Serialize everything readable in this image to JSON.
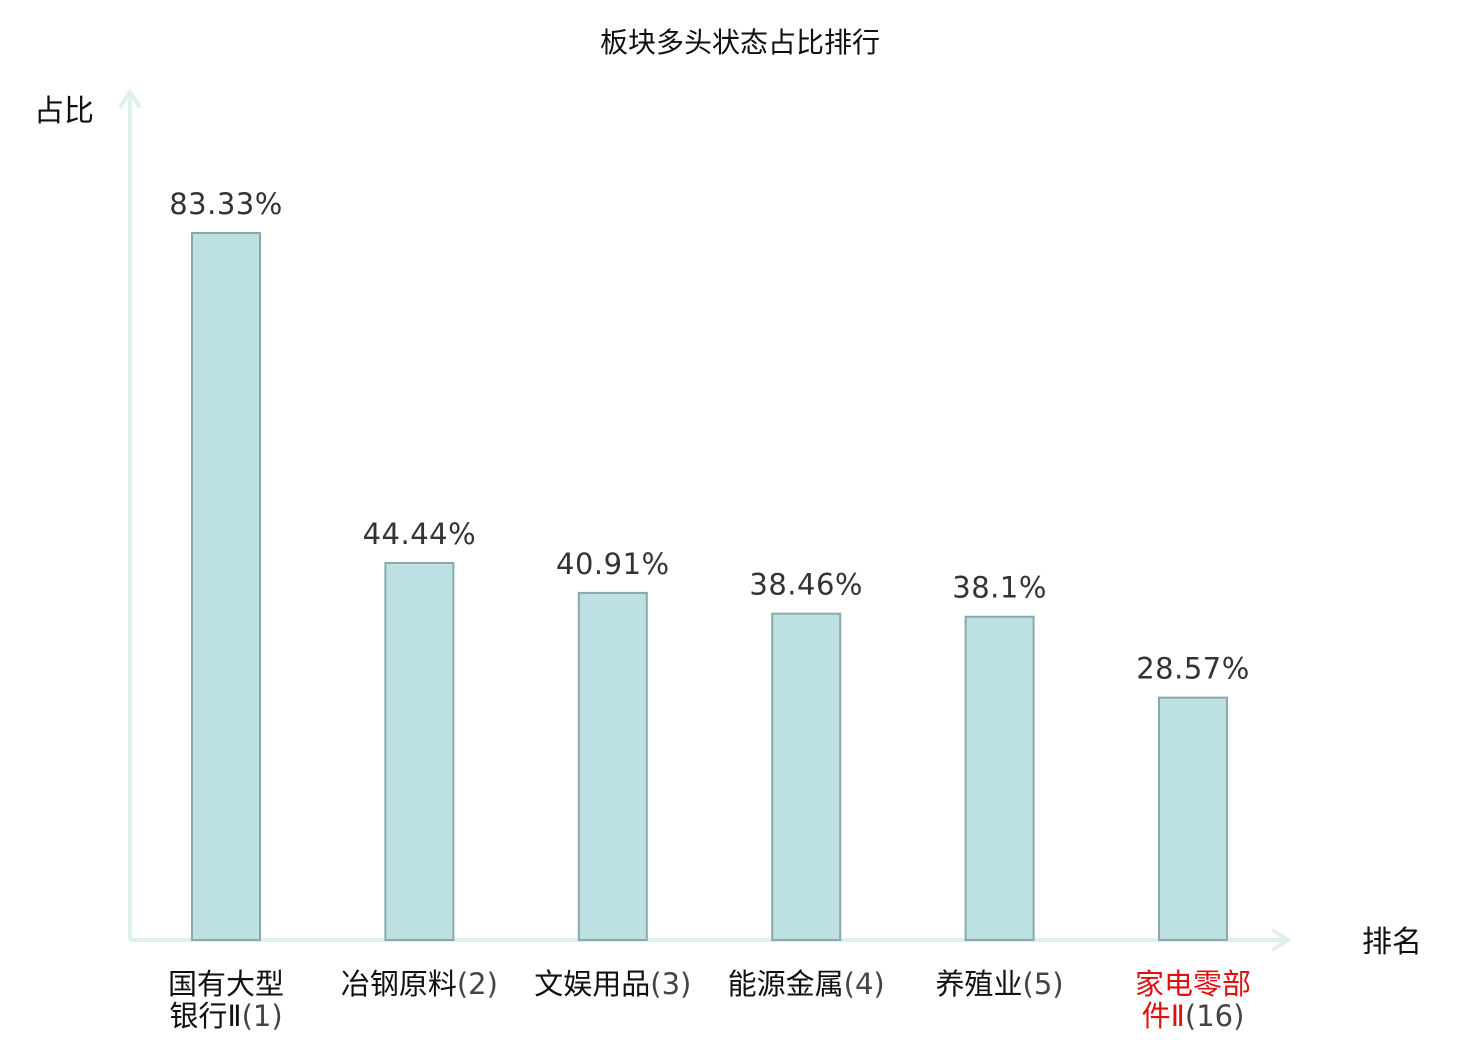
{
  "chart_data": {
    "type": "bar",
    "title": "板块多头状态占比排行",
    "xlabel": "排名",
    "ylabel": "占比",
    "categories": [
      {
        "lines": [
          {
            "name": "国有大型",
            "rank": ""
          },
          {
            "name": "银行Ⅱ",
            "rank": "(1)"
          }
        ],
        "highlight": false
      },
      {
        "lines": [
          {
            "name": "冶钢原料",
            "rank": "(2)"
          }
        ],
        "highlight": false
      },
      {
        "lines": [
          {
            "name": "文娱用品",
            "rank": "(3)"
          }
        ],
        "highlight": false
      },
      {
        "lines": [
          {
            "name": "能源金属",
            "rank": "(4)"
          }
        ],
        "highlight": false
      },
      {
        "lines": [
          {
            "name": "养殖业",
            "rank": "(5)"
          }
        ],
        "highlight": false
      },
      {
        "lines": [
          {
            "name": "家电零部",
            "rank": ""
          },
          {
            "name": "件Ⅱ",
            "rank": "(16)"
          }
        ],
        "highlight": true
      }
    ],
    "values": [
      83.33,
      44.44,
      40.91,
      38.46,
      38.1,
      28.57
    ],
    "value_labels": [
      "83.33%",
      "44.44%",
      "40.91%",
      "38.46%",
      "38.1%",
      "28.57%"
    ],
    "ylim": [
      0,
      100
    ],
    "grid": false,
    "colors": {
      "bar_fill": "#bde0e2",
      "bar_stroke": "#8aa9aa",
      "axis": "#dff1ef",
      "highlight_label": "#e01010",
      "label": "#111111",
      "value_label": "#333333"
    }
  }
}
